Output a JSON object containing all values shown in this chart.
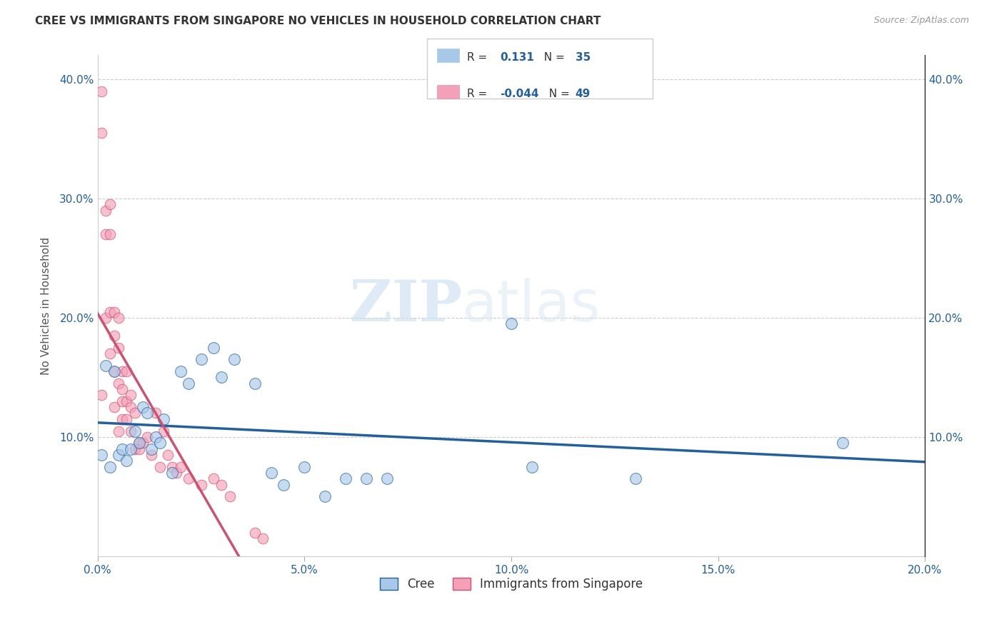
{
  "title": "CREE VS IMMIGRANTS FROM SINGAPORE NO VEHICLES IN HOUSEHOLD CORRELATION CHART",
  "source": "Source: ZipAtlas.com",
  "ylabel": "No Vehicles in Household",
  "xmin": 0.0,
  "xmax": 0.2,
  "ymin": 0.0,
  "ymax": 0.42,
  "xticks": [
    0.0,
    0.05,
    0.1,
    0.15,
    0.2
  ],
  "yticks": [
    0.1,
    0.2,
    0.3,
    0.4
  ],
  "cree_color": "#a8c8e8",
  "singapore_color": "#f4a0b8",
  "cree_line_color": "#2060a0",
  "singapore_line_color": "#d05070",
  "cree_R": 0.131,
  "cree_N": 35,
  "singapore_R": -0.044,
  "singapore_N": 49,
  "legend_label_cree": "Cree",
  "legend_label_singapore": "Immigrants from Singapore",
  "watermark_zip": "ZIP",
  "watermark_atlas": "atlas",
  "cree_x": [
    0.001,
    0.002,
    0.003,
    0.004,
    0.005,
    0.006,
    0.007,
    0.008,
    0.009,
    0.01,
    0.011,
    0.012,
    0.013,
    0.014,
    0.015,
    0.016,
    0.018,
    0.02,
    0.022,
    0.025,
    0.028,
    0.03,
    0.033,
    0.038,
    0.042,
    0.045,
    0.05,
    0.055,
    0.06,
    0.065,
    0.07,
    0.1,
    0.105,
    0.13,
    0.18
  ],
  "cree_y": [
    0.085,
    0.16,
    0.075,
    0.155,
    0.085,
    0.09,
    0.08,
    0.09,
    0.105,
    0.095,
    0.125,
    0.12,
    0.09,
    0.1,
    0.095,
    0.115,
    0.07,
    0.155,
    0.145,
    0.165,
    0.175,
    0.15,
    0.165,
    0.145,
    0.07,
    0.06,
    0.075,
    0.05,
    0.065,
    0.065,
    0.065,
    0.195,
    0.075,
    0.065,
    0.095
  ],
  "singapore_x": [
    0.001,
    0.001,
    0.001,
    0.002,
    0.002,
    0.002,
    0.003,
    0.003,
    0.003,
    0.003,
    0.004,
    0.004,
    0.004,
    0.004,
    0.005,
    0.005,
    0.005,
    0.005,
    0.006,
    0.006,
    0.006,
    0.006,
    0.007,
    0.007,
    0.007,
    0.008,
    0.008,
    0.008,
    0.009,
    0.009,
    0.01,
    0.01,
    0.011,
    0.012,
    0.013,
    0.014,
    0.015,
    0.016,
    0.017,
    0.018,
    0.019,
    0.02,
    0.022,
    0.025,
    0.028,
    0.03,
    0.032,
    0.038,
    0.04
  ],
  "singapore_y": [
    0.39,
    0.355,
    0.135,
    0.29,
    0.27,
    0.2,
    0.295,
    0.27,
    0.205,
    0.17,
    0.205,
    0.185,
    0.155,
    0.125,
    0.2,
    0.175,
    0.145,
    0.105,
    0.155,
    0.14,
    0.13,
    0.115,
    0.155,
    0.13,
    0.115,
    0.135,
    0.125,
    0.105,
    0.12,
    0.09,
    0.095,
    0.09,
    0.095,
    0.1,
    0.085,
    0.12,
    0.075,
    0.105,
    0.085,
    0.075,
    0.07,
    0.075,
    0.065,
    0.06,
    0.065,
    0.06,
    0.05,
    0.02,
    0.015
  ],
  "cree_marker_size": 130,
  "singapore_marker_size": 110
}
